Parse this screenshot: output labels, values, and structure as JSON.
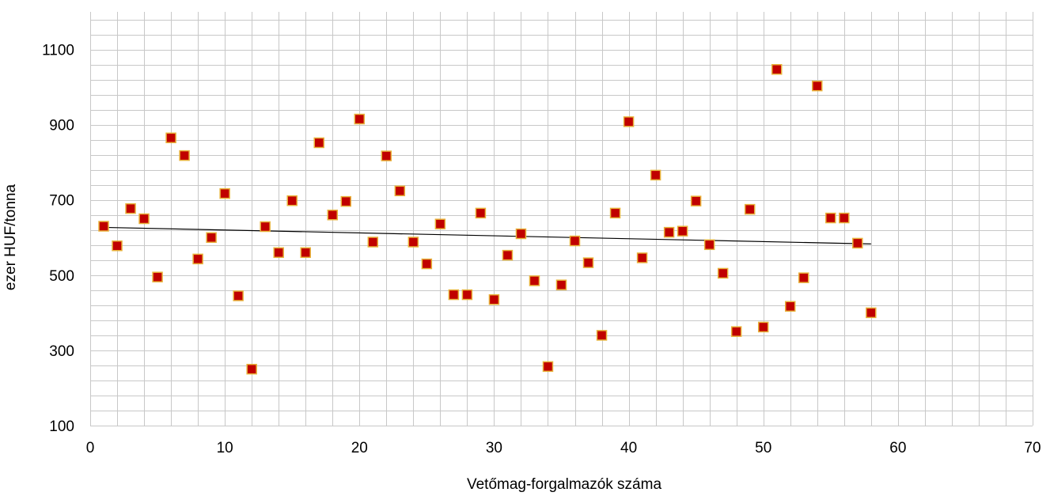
{
  "chart_data": {
    "type": "scatter",
    "title": "",
    "xlabel": "Vetőmag-forgalmazók száma",
    "ylabel": "ezer HUF/tonna",
    "xlim": [
      0,
      70
    ],
    "ylim": [
      100,
      1200
    ],
    "x_ticks": [
      0,
      10,
      20,
      30,
      40,
      50,
      60,
      70
    ],
    "y_ticks": [
      100,
      300,
      500,
      700,
      900,
      1100
    ],
    "x_minor_step": 2,
    "y_minor_step": 40,
    "grid": true,
    "legend": "none",
    "marker": "square",
    "marker_color": "#C00000",
    "marker_edge_color": "#E8B23A",
    "trendline": {
      "type": "linear",
      "x": [
        1,
        58
      ],
      "y": [
        627,
        583
      ],
      "color": "#000000"
    },
    "series": [
      {
        "x": [
          1,
          2,
          3,
          4,
          5,
          6,
          7,
          8,
          9,
          10,
          11,
          12,
          13,
          14,
          15,
          16,
          17,
          18,
          19,
          20,
          21,
          22,
          23,
          24,
          25,
          26,
          27,
          28,
          29,
          30,
          31,
          32,
          33,
          34,
          35,
          36,
          37,
          38,
          39,
          40,
          41,
          42,
          43,
          44,
          45,
          46,
          47,
          48,
          49,
          50,
          51,
          52,
          53,
          54,
          55,
          56,
          57,
          58
        ],
        "y": [
          630,
          578,
          677,
          650,
          495,
          865,
          818,
          543,
          600,
          717,
          445,
          250,
          629,
          560,
          698,
          560,
          852,
          660,
          696,
          915,
          588,
          817,
          724,
          588,
          530,
          636,
          448,
          448,
          665,
          435,
          553,
          610,
          485,
          257,
          474,
          591,
          533,
          340,
          665,
          908,
          546,
          766,
          614,
          617,
          697,
          581,
          505,
          350,
          675,
          362,
          1047,
          417,
          493,
          1003,
          652,
          652,
          585,
          400
        ]
      }
    ]
  }
}
